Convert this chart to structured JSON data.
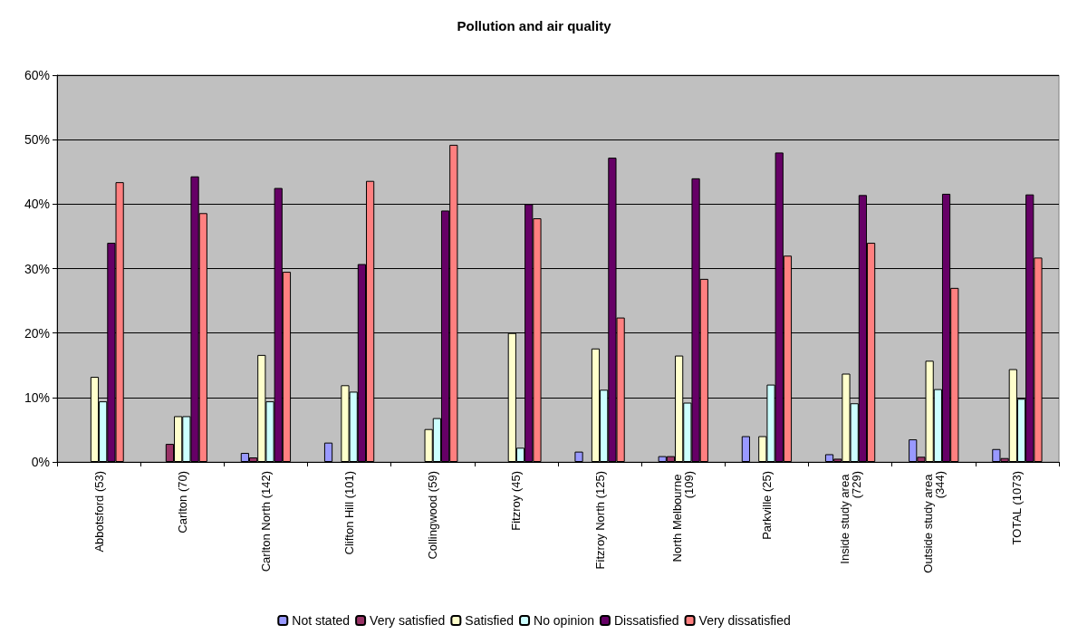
{
  "chart_data": {
    "type": "bar",
    "title": "Pollution and air quality",
    "categories": [
      "Abbotsford (53)",
      "Carlton (70)",
      "Carlton North (142)",
      "Clifton Hill (101)",
      "Collingwood (59)",
      "Fitzroy (45)",
      "Fitzroy North (125)",
      "North Melbourne (109)",
      "Parkville (25)",
      "Inside study area (729)",
      "Outside study area (344)",
      "TOTAL (1073)"
    ],
    "series": [
      {
        "name": "Not stated",
        "color": "#9999ff",
        "values": [
          null,
          null,
          1.4,
          3,
          null,
          null,
          1.6,
          0.9,
          4,
          1.2,
          3.5,
          2
        ]
      },
      {
        "name": "Very satisfied",
        "color": "#993366",
        "values": [
          null,
          2.8,
          0.7,
          null,
          null,
          null,
          null,
          0.9,
          null,
          0.5,
          0.8,
          0.6
        ]
      },
      {
        "name": "Satisfied",
        "color": "#ffffcc",
        "values": [
          13.2,
          7.1,
          16.6,
          11.9,
          5.1,
          20,
          17.6,
          16.5,
          4,
          13.7,
          15.7,
          14.4
        ]
      },
      {
        "name": "No opinion",
        "color": "#ccffff",
        "values": [
          9.4,
          7.1,
          9.4,
          10.9,
          6.8,
          2.2,
          11.2,
          9.2,
          12,
          9.1,
          11.3,
          9.8
        ]
      },
      {
        "name": "Dissatisfied",
        "color": "#660066",
        "values": [
          34,
          44.3,
          42.5,
          30.7,
          39,
          40,
          47.2,
          44,
          48,
          41.4,
          41.6,
          41.5
        ]
      },
      {
        "name": "Very dissatisfied",
        "color": "#ff8080",
        "values": [
          43.4,
          38.6,
          29.5,
          43.6,
          49.2,
          37.8,
          22.4,
          28.4,
          32,
          34,
          27,
          31.7
        ]
      }
    ],
    "ylim": [
      0,
      60
    ],
    "yticks": [
      {
        "value": 0,
        "label": "0%"
      },
      {
        "value": 10,
        "label": "10%"
      },
      {
        "value": 20,
        "label": "20%"
      },
      {
        "value": 30,
        "label": "30%"
      },
      {
        "value": 40,
        "label": "40%"
      },
      {
        "value": 50,
        "label": "50%"
      },
      {
        "value": 60,
        "label": "60%"
      }
    ],
    "grid": "y",
    "legend": "bottom"
  }
}
